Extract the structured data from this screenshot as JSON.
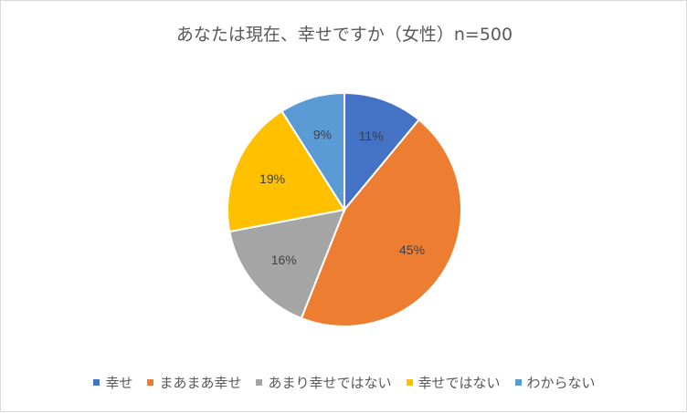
{
  "chart_data": {
    "type": "pie",
    "title": "あなたは現在、幸せですか（女性）n=500",
    "categories": [
      "幸せ",
      "まあまあ幸せ",
      "あまり幸せではない",
      "幸せではない",
      "わからない"
    ],
    "values": [
      11,
      45,
      16,
      19,
      9
    ],
    "labels": [
      "11%",
      "45%",
      "16%",
      "19%",
      "9%"
    ],
    "colors": [
      "#4472c4",
      "#ed7d31",
      "#a5a5a5",
      "#ffc000",
      "#5b9bd5"
    ],
    "legend_position": "bottom"
  }
}
